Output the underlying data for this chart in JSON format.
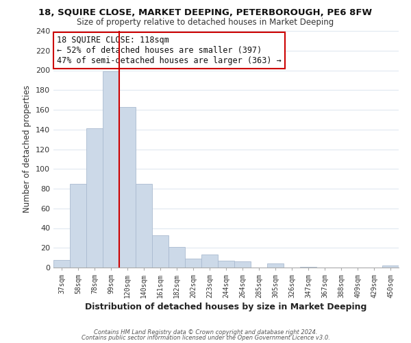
{
  "title1": "18, SQUIRE CLOSE, MARKET DEEPING, PETERBOROUGH, PE6 8FW",
  "title2": "Size of property relative to detached houses in Market Deeping",
  "xlabel": "Distribution of detached houses by size in Market Deeping",
  "ylabel": "Number of detached properties",
  "bar_color": "#ccd9e8",
  "bar_edgecolor": "#aabbd0",
  "categories": [
    "37sqm",
    "58sqm",
    "78sqm",
    "99sqm",
    "120sqm",
    "140sqm",
    "161sqm",
    "182sqm",
    "202sqm",
    "223sqm",
    "244sqm",
    "264sqm",
    "285sqm",
    "305sqm",
    "326sqm",
    "347sqm",
    "367sqm",
    "388sqm",
    "409sqm",
    "429sqm",
    "450sqm"
  ],
  "values": [
    8,
    85,
    141,
    199,
    163,
    85,
    33,
    21,
    9,
    13,
    7,
    6,
    0,
    4,
    0,
    1,
    0,
    0,
    0,
    0,
    2
  ],
  "annotation_title": "18 SQUIRE CLOSE: 118sqm",
  "annotation_line1": "← 52% of detached houses are smaller (397)",
  "annotation_line2": "47% of semi-detached houses are larger (363) →",
  "ylim": [
    0,
    240
  ],
  "yticks": [
    0,
    20,
    40,
    60,
    80,
    100,
    120,
    140,
    160,
    180,
    200,
    220,
    240
  ],
  "vline_color": "#cc0000",
  "vline_x": 4.0,
  "footer1": "Contains HM Land Registry data © Crown copyright and database right 2024.",
  "footer2": "Contains public sector information licensed under the Open Government Licence v3.0.",
  "background_color": "#ffffff",
  "grid_color": "#e0e8f0"
}
